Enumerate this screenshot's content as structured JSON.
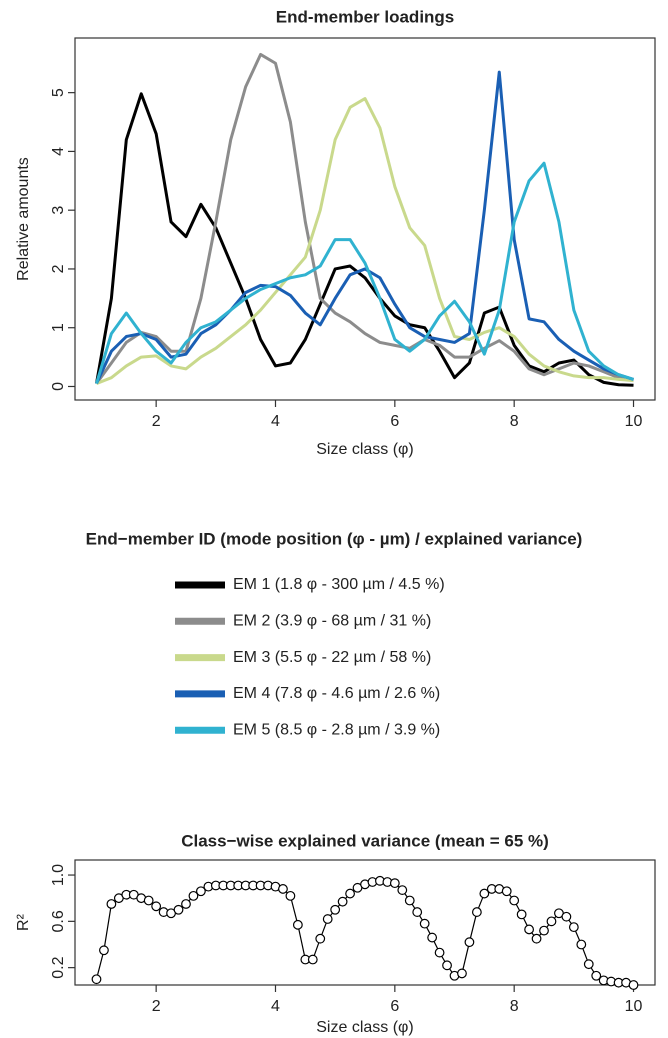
{
  "chart_data": [
    {
      "type": "line",
      "title": "End-member loadings",
      "xlabel": "Size class (φ)",
      "ylabel": "Relative amounts",
      "legend_title": "End−member ID (mode position (φ - µm) / explained variance)",
      "x": [
        1,
        1.25,
        1.5,
        1.75,
        2,
        2.25,
        2.5,
        2.75,
        3,
        3.25,
        3.5,
        3.75,
        4,
        4.25,
        4.5,
        4.75,
        5,
        5.25,
        5.5,
        5.75,
        6,
        6.25,
        6.5,
        6.75,
        7,
        7.25,
        7.5,
        7.75,
        8,
        8.25,
        8.5,
        8.75,
        9,
        9.25,
        9.5,
        9.75,
        10
      ],
      "series": [
        {
          "name": "EM 1 (1.8 φ - 300 µm / 4.5 %)",
          "color": "#000000",
          "values": [
            0.05,
            1.5,
            4.2,
            4.98,
            4.3,
            2.8,
            2.55,
            3.1,
            2.7,
            2.1,
            1.5,
            0.8,
            0.35,
            0.4,
            0.8,
            1.4,
            2.0,
            2.05,
            1.85,
            1.5,
            1.2,
            1.05,
            1.0,
            0.6,
            0.15,
            0.4,
            1.25,
            1.35,
            0.7,
            0.35,
            0.25,
            0.4,
            0.45,
            0.2,
            0.07,
            0.03,
            0.02
          ]
        },
        {
          "name": "EM 2 (3.9 φ - 68 µm / 31 %)",
          "color": "#8c8c8c",
          "values": [
            0.05,
            0.4,
            0.75,
            0.92,
            0.85,
            0.6,
            0.6,
            1.5,
            2.8,
            4.2,
            5.1,
            5.65,
            5.5,
            4.5,
            2.8,
            1.5,
            1.25,
            1.1,
            0.9,
            0.75,
            0.7,
            0.65,
            0.8,
            0.7,
            0.5,
            0.5,
            0.65,
            0.78,
            0.6,
            0.3,
            0.2,
            0.3,
            0.4,
            0.35,
            0.25,
            0.15,
            0.1
          ]
        },
        {
          "name": "EM 3 (5.5 φ - 22 µm / 58 %)",
          "color": "#c9d98c",
          "values": [
            0.05,
            0.15,
            0.35,
            0.5,
            0.52,
            0.35,
            0.3,
            0.5,
            0.65,
            0.85,
            1.05,
            1.3,
            1.6,
            1.9,
            2.2,
            3.0,
            4.2,
            4.75,
            4.9,
            4.4,
            3.4,
            2.7,
            2.4,
            1.5,
            0.85,
            0.8,
            0.92,
            1.0,
            0.85,
            0.55,
            0.35,
            0.25,
            0.18,
            0.15,
            0.15,
            0.12,
            0.1
          ]
        },
        {
          "name": "EM 4 (7.8 φ - 4.6 µm / 2.6 %)",
          "color": "#1a5fb4",
          "values": [
            0.05,
            0.6,
            0.85,
            0.9,
            0.8,
            0.5,
            0.55,
            0.9,
            1.05,
            1.3,
            1.6,
            1.72,
            1.7,
            1.55,
            1.25,
            1.05,
            1.5,
            1.9,
            2.0,
            1.85,
            1.4,
            1.0,
            0.85,
            0.8,
            0.75,
            0.9,
            3.0,
            5.35,
            2.5,
            1.15,
            1.1,
            0.8,
            0.6,
            0.45,
            0.3,
            0.2,
            0.12
          ]
        },
        {
          "name": "EM 5 (8.5 φ - 2.8 µm / 3.9 %)",
          "color": "#30b2d0",
          "values": [
            0.05,
            0.9,
            1.25,
            0.9,
            0.6,
            0.4,
            0.75,
            1.0,
            1.1,
            1.3,
            1.5,
            1.65,
            1.75,
            1.85,
            1.9,
            2.05,
            2.5,
            2.5,
            2.1,
            1.5,
            0.8,
            0.6,
            0.8,
            1.2,
            1.45,
            1.1,
            0.55,
            1.3,
            2.8,
            3.5,
            3.8,
            2.8,
            1.3,
            0.6,
            0.35,
            0.2,
            0.12
          ]
        }
      ],
      "xlim": [
        0.64,
        10.36
      ],
      "ylim": [
        -0.23,
        5.93
      ],
      "xticks": [
        2,
        4,
        6,
        8,
        10
      ],
      "yticks": [
        0,
        1,
        2,
        3,
        4,
        5
      ]
    },
    {
      "type": "line",
      "markers": true,
      "title": "Class−wise explained variance (mean = 65 %)",
      "xlabel": "Size class (φ)",
      "ylabel": "R²",
      "color": "#000000",
      "x": [
        1,
        1.125,
        1.25,
        1.375,
        1.5,
        1.625,
        1.75,
        1.875,
        2,
        2.125,
        2.25,
        2.375,
        2.5,
        2.625,
        2.75,
        2.875,
        3,
        3.125,
        3.25,
        3.375,
        3.5,
        3.625,
        3.75,
        3.875,
        4,
        4.125,
        4.25,
        4.375,
        4.5,
        4.625,
        4.75,
        4.875,
        5,
        5.125,
        5.25,
        5.375,
        5.5,
        5.625,
        5.75,
        5.875,
        6,
        6.125,
        6.25,
        6.375,
        6.5,
        6.625,
        6.75,
        6.875,
        7,
        7.125,
        7.25,
        7.375,
        7.5,
        7.625,
        7.75,
        7.875,
        8,
        8.125,
        8.25,
        8.375,
        8.5,
        8.625,
        8.75,
        8.875,
        9,
        9.125,
        9.25,
        9.375,
        9.5,
        9.625,
        9.75,
        9.875,
        10
      ],
      "values": [
        0.1,
        0.35,
        0.75,
        0.8,
        0.83,
        0.83,
        0.8,
        0.78,
        0.73,
        0.68,
        0.67,
        0.7,
        0.75,
        0.82,
        0.86,
        0.9,
        0.91,
        0.91,
        0.91,
        0.91,
        0.91,
        0.91,
        0.91,
        0.91,
        0.9,
        0.88,
        0.82,
        0.57,
        0.27,
        0.27,
        0.45,
        0.62,
        0.7,
        0.77,
        0.84,
        0.89,
        0.92,
        0.94,
        0.95,
        0.94,
        0.93,
        0.87,
        0.78,
        0.68,
        0.58,
        0.46,
        0.33,
        0.22,
        0.13,
        0.15,
        0.42,
        0.68,
        0.84,
        0.88,
        0.88,
        0.86,
        0.78,
        0.66,
        0.53,
        0.45,
        0.52,
        0.6,
        0.67,
        0.64,
        0.55,
        0.4,
        0.23,
        0.13,
        0.09,
        0.08,
        0.07,
        0.07,
        0.05
      ],
      "xlim": [
        0.64,
        10.36
      ],
      "ylim": [
        0.05,
        1.13
      ],
      "xticks": [
        2,
        4,
        6,
        8,
        10
      ],
      "yticks": [
        0.2,
        0.6,
        {
          "value": 1,
          "label": "1.0"
        }
      ]
    }
  ]
}
